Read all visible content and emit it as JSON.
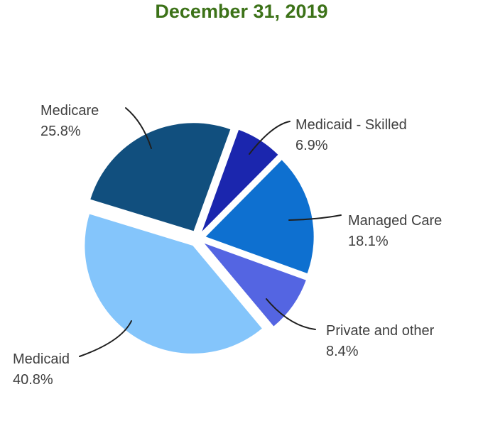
{
  "chart_data": {
    "type": "pie",
    "title": "December 31, 2019",
    "title_color": "#3C7218",
    "start_angle_deg": -73,
    "exploded": true,
    "legend": "none",
    "label_style": "outside callout labels with curved leader lines",
    "text_color": "#3F3F3F",
    "leader_line_color": "#1F1F1F",
    "slices": [
      {
        "label": "Medicare",
        "value": 25.8,
        "display": "25.8%",
        "color": "#114F7E"
      },
      {
        "label": "Medicaid - Skilled",
        "value": 6.9,
        "display": "6.9%",
        "color": "#1B26AE"
      },
      {
        "label": "Managed Care",
        "value": 18.1,
        "display": "18.1%",
        "color": "#0E70D0"
      },
      {
        "label": "Private and other",
        "value": 8.4,
        "display": "8.4%",
        "color": "#5465E2"
      },
      {
        "label": "Medicaid",
        "value": 40.8,
        "display": "40.8%",
        "color": "#84C5FB"
      }
    ]
  }
}
